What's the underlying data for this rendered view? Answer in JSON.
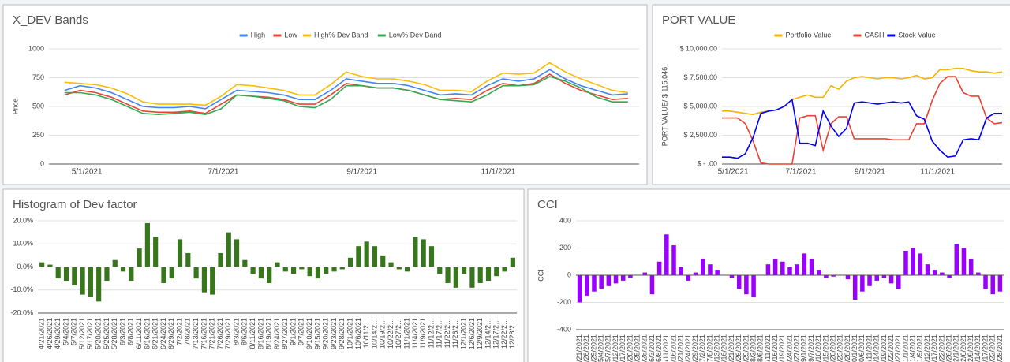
{
  "chart_data": [
    {
      "type": "line",
      "title": "X_DEV Bands",
      "y_label": "Price",
      "x": [
        "4/21/2021",
        "4/28/2021",
        "5/5/2021",
        "5/12/2021",
        "5/19/2021",
        "5/26/2021",
        "6/2/2021",
        "6/9/2021",
        "6/16/2021",
        "6/23/2021",
        "6/30/2021",
        "7/7/2021",
        "7/14/2021",
        "7/21/2021",
        "7/28/2021",
        "8/4/2021",
        "8/11/2021",
        "8/18/2021",
        "8/25/2021",
        "9/1/2021",
        "9/8/2021",
        "9/15/2021",
        "9/22/2021",
        "9/29/2021",
        "10/6/2021",
        "10/13/2021",
        "10/20/2021",
        "10/27/2021",
        "11/3/2021",
        "11/10/2021",
        "11/17/2021",
        "11/24/2021",
        "12/1/2021",
        "12/8/2021",
        "12/15/2021",
        "12/22/2021",
        "12/29/2021"
      ],
      "xlim": [
        "4/14/2021",
        "1/3/2022"
      ],
      "xticks": [
        "5/1/2021",
        "7/1/2021",
        "9/1/2021",
        "11/1/2021"
      ],
      "ylim": [
        0,
        1000
      ],
      "yticks": [
        0,
        250,
        500,
        750,
        1000
      ],
      "grid": true,
      "legend": "top",
      "series": [
        {
          "name": "High",
          "color": "#4285f4",
          "values": [
            640,
            680,
            660,
            620,
            560,
            500,
            490,
            490,
            500,
            480,
            560,
            640,
            630,
            620,
            600,
            560,
            560,
            640,
            740,
            720,
            700,
            700,
            680,
            640,
            600,
            610,
            600,
            680,
            740,
            720,
            740,
            820,
            740,
            680,
            640,
            600,
            610
          ]
        },
        {
          "name": "Low",
          "color": "#ea4335",
          "values": [
            600,
            640,
            620,
            580,
            520,
            460,
            450,
            450,
            460,
            440,
            520,
            600,
            590,
            580,
            560,
            520,
            520,
            600,
            700,
            680,
            660,
            660,
            640,
            600,
            560,
            570,
            560,
            640,
            700,
            680,
            700,
            780,
            700,
            640,
            600,
            560,
            570
          ]
        },
        {
          "name": "High% Dev Band",
          "color": "#fbbc04",
          "values": [
            710,
            700,
            690,
            660,
            610,
            540,
            520,
            520,
            520,
            510,
            590,
            690,
            680,
            660,
            640,
            600,
            600,
            690,
            800,
            760,
            740,
            740,
            720,
            690,
            640,
            640,
            630,
            720,
            790,
            780,
            790,
            880,
            800,
            740,
            690,
            640,
            620
          ]
        },
        {
          "name": "Low% Dev Band",
          "color": "#34a853",
          "values": [
            620,
            620,
            600,
            560,
            500,
            440,
            430,
            440,
            450,
            430,
            480,
            600,
            590,
            570,
            550,
            500,
            490,
            560,
            680,
            680,
            660,
            660,
            640,
            600,
            560,
            550,
            540,
            600,
            680,
            680,
            690,
            760,
            720,
            660,
            580,
            540,
            540
          ]
        }
      ]
    },
    {
      "type": "line",
      "title": "PORT VALUE",
      "y_label": "PORT VALUE/ $ 115,046",
      "x": [
        "4/21/2021",
        "4/28/2021",
        "5/5/2021",
        "5/12/2021",
        "5/19/2021",
        "5/26/2021",
        "6/2/2021",
        "6/9/2021",
        "6/16/2021",
        "6/23/2021",
        "6/30/2021",
        "7/7/2021",
        "7/14/2021",
        "7/21/2021",
        "7/28/2021",
        "8/4/2021",
        "8/11/2021",
        "8/18/2021",
        "8/25/2021",
        "9/1/2021",
        "9/8/2021",
        "9/15/2021",
        "9/22/2021",
        "9/29/2021",
        "10/6/2021",
        "10/13/2021",
        "10/20/2021",
        "10/27/2021",
        "11/3/2021",
        "11/10/2021",
        "11/17/2021",
        "11/24/2021",
        "12/1/2021",
        "12/8/2021",
        "12/15/2021",
        "12/22/2021",
        "12/29/2021"
      ],
      "xlim": [
        "4/21/2021",
        "12/29/2021"
      ],
      "xticks": [
        "5/1/2021",
        "7/1/2021",
        "9/1/2021",
        "11/1/2021"
      ],
      "ylim": [
        0,
        10000
      ],
      "yticks": [
        {
          "value": 0,
          "label": "$ -  .00"
        },
        {
          "value": 2500,
          "label": "$ 2,500.00"
        },
        {
          "value": 5000,
          "label": "$ 5,000.00"
        },
        {
          "value": 7500,
          "label": "$ 7,500.00"
        },
        {
          "value": 10000,
          "label": "$ 10,000.00"
        }
      ],
      "grid": true,
      "legend": "top",
      "series": [
        {
          "name": "Portfolio Value",
          "color": "#f4b400",
          "values": [
            4600,
            4600,
            4500,
            4400,
            4300,
            4500,
            4600,
            4700,
            5000,
            5600,
            5800,
            6000,
            5800,
            5800,
            6800,
            6500,
            7200,
            7500,
            7600,
            7500,
            7400,
            7500,
            7500,
            7400,
            7500,
            7700,
            7400,
            7500,
            8200,
            8200,
            8300,
            8300,
            8100,
            8000,
            8000,
            7900,
            8000
          ]
        },
        {
          "name": "CASH",
          "color": "#ea4335",
          "values": [
            4000,
            4000,
            4000,
            3500,
            2000,
            100,
            0,
            0,
            0,
            0,
            4000,
            4200,
            4200,
            1200,
            3500,
            4100,
            4100,
            2200,
            2200,
            2200,
            2200,
            2200,
            2100,
            2100,
            2100,
            3500,
            3500,
            5500,
            7000,
            7600,
            7600,
            6200,
            5900,
            5900,
            4000,
            3500,
            3600
          ]
        },
        {
          "name": "Stock Value",
          "color": "#0000ff",
          "values": [
            600,
            600,
            500,
            900,
            2300,
            4400,
            4600,
            4700,
            5000,
            5600,
            1800,
            1800,
            1600,
            4600,
            3300,
            2400,
            3100,
            5300,
            5400,
            5300,
            5200,
            5300,
            5400,
            5300,
            5400,
            4200,
            3900,
            2000,
            1200,
            600,
            700,
            2100,
            2200,
            2100,
            4000,
            4400,
            4400
          ]
        }
      ]
    },
    {
      "type": "bar",
      "title": "Histogram of Dev factor",
      "color": "#38761d",
      "categories": [
        "4/21/2021",
        "4/26/2021",
        "4/29/2021",
        "5/4/2021",
        "5/7/2021",
        "5/12/2021",
        "5/17/2021",
        "5/20/2021",
        "5/25/2021",
        "5/28/2021",
        "6/3/2021",
        "6/8/2021",
        "6/11/2021",
        "6/16/2021",
        "6/21/2021",
        "6/24/2021",
        "6/29/2021",
        "7/2/2021",
        "7/8/2021",
        "7/13/2021",
        "7/16/2021",
        "7/21/2021",
        "7/26/2021",
        "7/29/2021",
        "8/3/2021",
        "8/6/2021",
        "8/11/2021",
        "8/16/2021",
        "8/19/2021",
        "8/24/2021",
        "8/27/2021",
        "9/1/2021",
        "9/7/2021",
        "9/10/2021",
        "9/15/2021",
        "9/20/2021",
        "9/23/2021",
        "9/28/2021",
        "10/1/2021",
        "10/6/2021",
        "10/11/2…",
        "10/14/2…",
        "10/19/2…",
        "10/22/2…",
        "10/27/2…",
        "11/1/2021",
        "11/4/2021",
        "11/9/2021",
        "11/12/2…",
        "11/17/2…",
        "11/22/2…",
        "11/26/2…",
        "12/1/2021",
        "12/6/2021",
        "12/9/2021",
        "12/14/2…",
        "12/17/2…",
        "12/22/2…",
        "12/28/2…"
      ],
      "values": [
        2,
        1,
        -5,
        -6,
        -8,
        -12,
        -13,
        -15,
        -6,
        3,
        -2,
        -6,
        8,
        19,
        13,
        -7,
        -5,
        12,
        6,
        -5,
        -11,
        -12,
        6,
        15,
        12,
        3,
        -3,
        -5,
        -7,
        2,
        -2,
        -3,
        -1,
        -4,
        -5,
        -3,
        -2,
        -1,
        4,
        9,
        11,
        9,
        5,
        2,
        -1,
        -2,
        13,
        12,
        9,
        -3,
        -7,
        -9,
        -3,
        -9,
        -7,
        -6,
        -4,
        -2,
        4
      ],
      "ylim": [
        -20,
        20
      ],
      "yticks": [
        {
          "value": -20,
          "label": "-20.0%"
        },
        {
          "value": -10,
          "label": "-10.0%"
        },
        {
          "value": 0,
          "label": "0.0%"
        },
        {
          "value": 10,
          "label": "10.0%"
        },
        {
          "value": 20,
          "label": "20.0%"
        }
      ],
      "grid": true
    },
    {
      "type": "bar",
      "title": "CCI",
      "y_label": "CCI",
      "color": "#9900ff",
      "categories": [
        "4/21/2021",
        "4/26/2021",
        "4/29/2021",
        "5/4/2021",
        "5/7/2021",
        "5/12/2021",
        "5/17/2021",
        "5/20/2021",
        "5/25/2021",
        "5/28/2021",
        "6/3/2021",
        "6/8/2021",
        "6/11/2021",
        "6/16/2021",
        "6/21/2021",
        "6/24/2021",
        "6/29/2021",
        "7/2/2021",
        "7/8/2021",
        "7/13/2021",
        "7/16/2021",
        "7/21/2021",
        "7/26/2021",
        "7/29/2021",
        "8/3/2021",
        "8/6/2021",
        "8/11/2021",
        "8/16/2021",
        "8/19/2021",
        "8/24/2021",
        "8/27/2021",
        "9/1/2021",
        "9/7/2021",
        "9/10/2021",
        "9/15/2021",
        "9/20/2021",
        "9/23/2021",
        "9/28/2021",
        "10/1/2021",
        "10/6/2021",
        "10/11/2021",
        "10/14/2021",
        "10/19/2021",
        "10/22/2021",
        "10/27/2021",
        "11/1/2021",
        "11/4/2021",
        "11/9/2021",
        "11/12/2021",
        "11/17/2021",
        "11/22/2021",
        "11/26/2021",
        "12/1/2021",
        "12/6/2021",
        "12/9/2021",
        "12/14/2021",
        "12/17/2021",
        "12/22/2021",
        "12/28/2021"
      ],
      "values": [
        -200,
        -150,
        -120,
        -100,
        -80,
        -60,
        -40,
        -20,
        0,
        20,
        -140,
        100,
        300,
        220,
        60,
        -40,
        20,
        120,
        80,
        40,
        0,
        -20,
        -100,
        -140,
        -160,
        0,
        80,
        120,
        100,
        60,
        80,
        160,
        120,
        40,
        -20,
        -10,
        0,
        -30,
        -180,
        -120,
        -80,
        -40,
        -20,
        -60,
        -100,
        180,
        200,
        160,
        80,
        40,
        20,
        -20,
        230,
        200,
        120,
        20,
        -100,
        -140,
        -120
      ],
      "ylim": [
        -400,
        400
      ],
      "yticks": [
        -400,
        -200,
        0,
        200,
        400
      ],
      "grid": true
    }
  ]
}
